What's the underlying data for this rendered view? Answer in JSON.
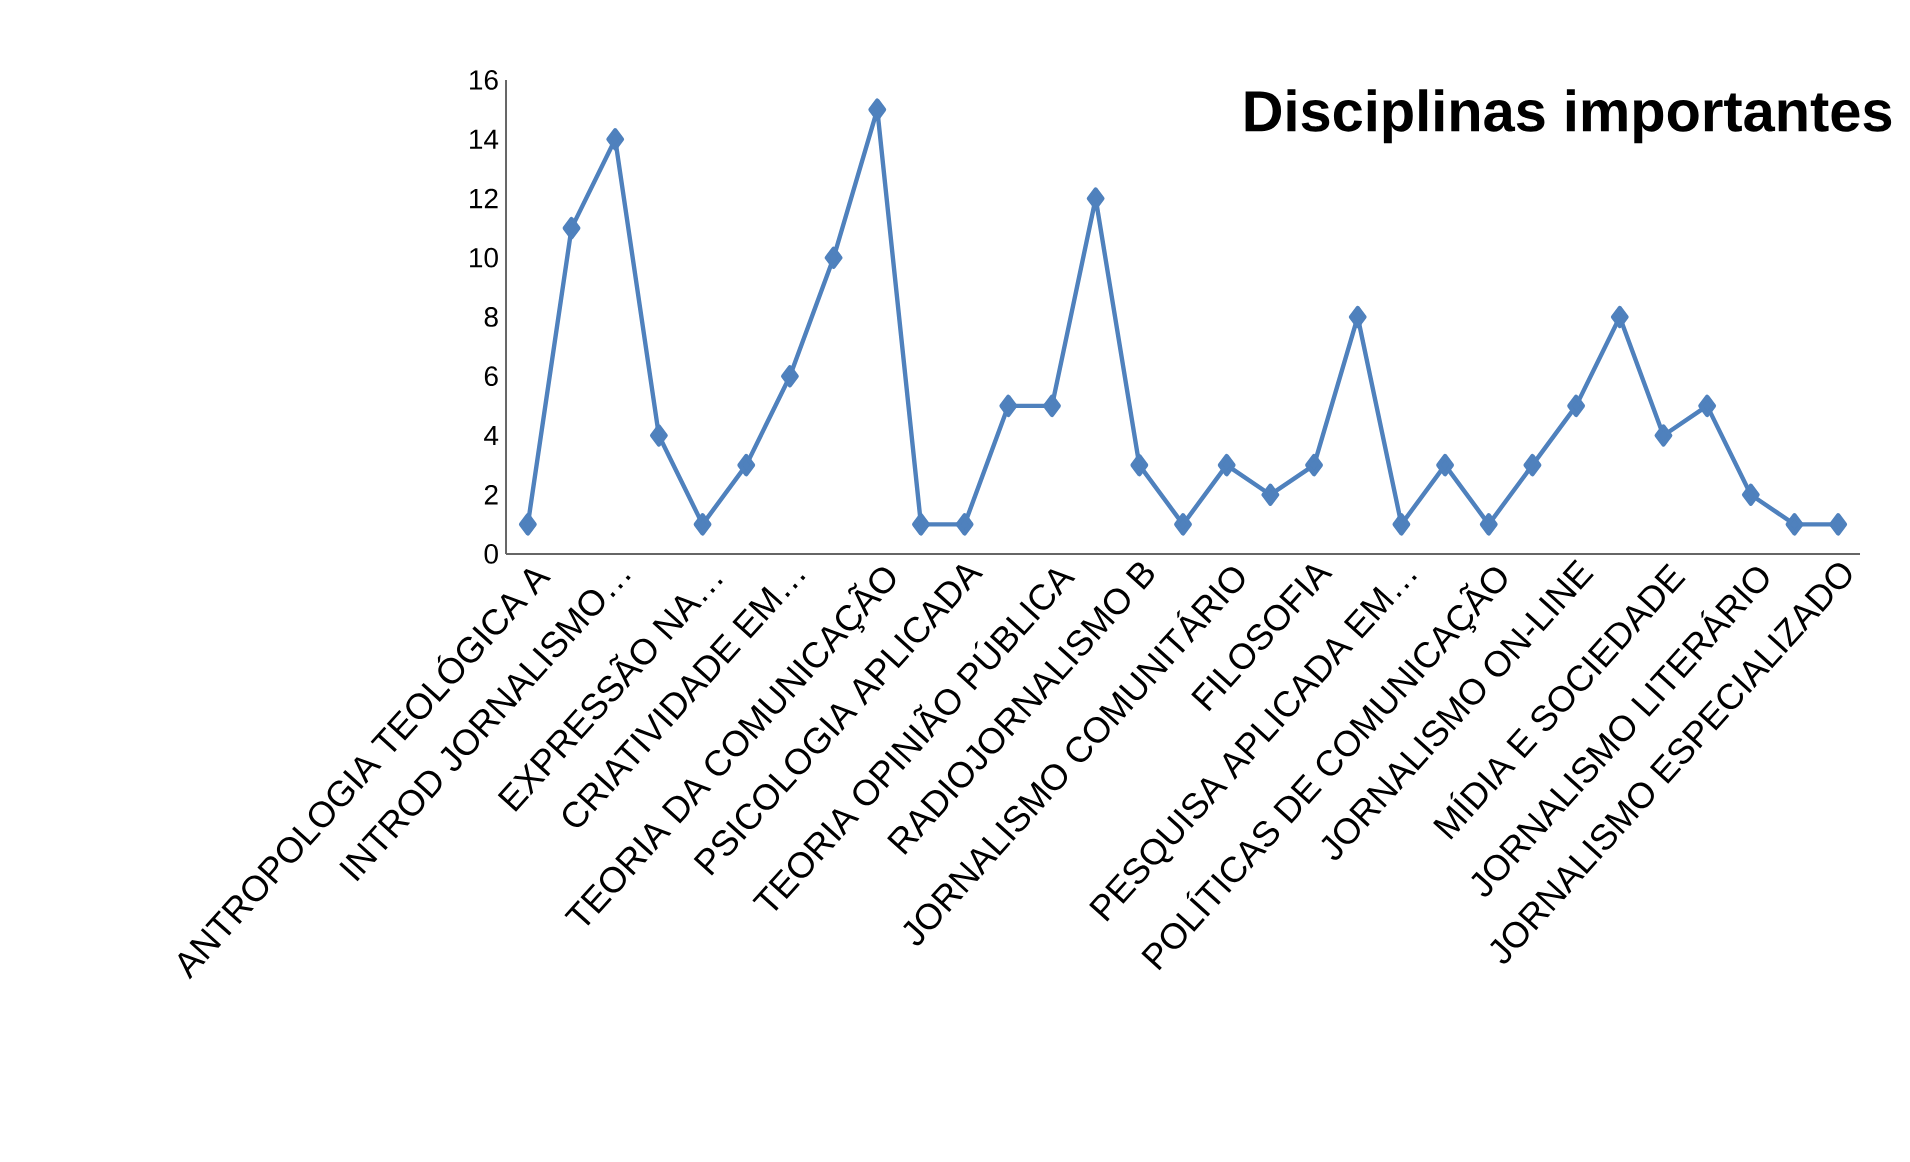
{
  "chart_data": {
    "type": "line",
    "title": "Disciplinas importantes",
    "categories": [
      "ANTROPOLOGIA TEOLÓGICA A",
      null,
      "INTROD JORNALISMO…",
      null,
      "EXPRESSÃO NA…",
      null,
      "CRIATIVIDADE EM…",
      null,
      "TEORIA DA COMUNICAÇÃO",
      null,
      "PSICOLOGIA APLICADA",
      null,
      "TEORIA OPINIÃO PÚBLICA",
      null,
      "RADIOJORNALISMO B",
      null,
      "JORNALISMO COMUNITÁRIO",
      null,
      "FILOSOFIA",
      null,
      "PESQUISA APLICADA EM…",
      null,
      "POLÍTICAS DE COMUNICAÇÃO",
      null,
      "JORNALISMO ON-LINE",
      null,
      "MÍDIA E SOCIEDADE",
      null,
      "JORNALISMO LITERÁRIO",
      null,
      "JORNALISMO ESPECIALIZADO"
    ],
    "series": [
      {
        "color": "#4f81bd",
        "values": [
          1,
          11,
          14,
          4,
          1,
          3,
          6,
          10,
          15,
          1,
          1,
          5,
          5,
          12,
          3,
          1,
          3,
          2,
          3,
          8,
          1,
          3,
          1,
          3,
          5,
          8,
          4,
          5,
          2,
          1,
          1
        ]
      }
    ],
    "ylim": [
      0,
      16
    ],
    "yticks": [
      0,
      2,
      4,
      6,
      8,
      10,
      12,
      14,
      16
    ],
    "grid": false,
    "marker": "diamond",
    "line_style": "solid"
  }
}
